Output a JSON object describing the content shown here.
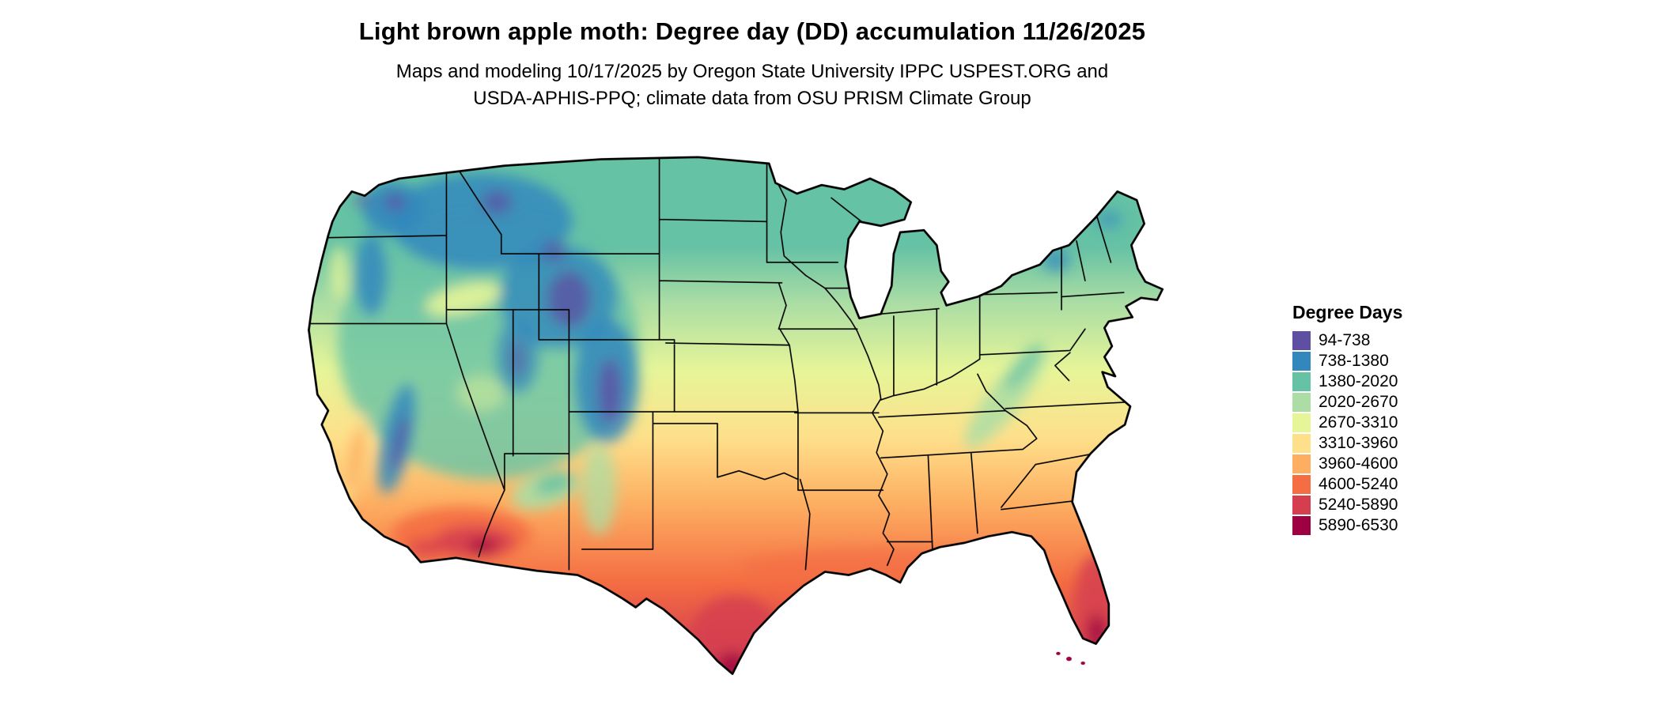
{
  "header": {
    "title": "Light brown apple moth: Degree day (DD) accumulation 11/26/2025",
    "subtitle_line1": "Maps and modeling 10/17/2025 by Oregon State University IPPC USPEST.ORG and",
    "subtitle_line2": "USDA-APHIS-PPQ; climate data from OSU PRISM Climate Group"
  },
  "legend": {
    "title": "Degree Days",
    "entries": [
      {
        "label": "94-738",
        "color": "#5e4fa2"
      },
      {
        "label": "738-1380",
        "color": "#3288bd"
      },
      {
        "label": "1380-2020",
        "color": "#66c2a5"
      },
      {
        "label": "2020-2670",
        "color": "#abdda4"
      },
      {
        "label": "2670-3310",
        "color": "#e6f598"
      },
      {
        "label": "3310-3960",
        "color": "#fee08b"
      },
      {
        "label": "3960-4600",
        "color": "#fdae61"
      },
      {
        "label": "4600-5240",
        "color": "#f46d43"
      },
      {
        "label": "5240-5890",
        "color": "#d53e4f"
      },
      {
        "label": "5890-6530",
        "color": "#9e0142"
      }
    ]
  },
  "colors": {
    "background": "#ffffff",
    "state_border": "#000000",
    "text": "#000000"
  }
}
